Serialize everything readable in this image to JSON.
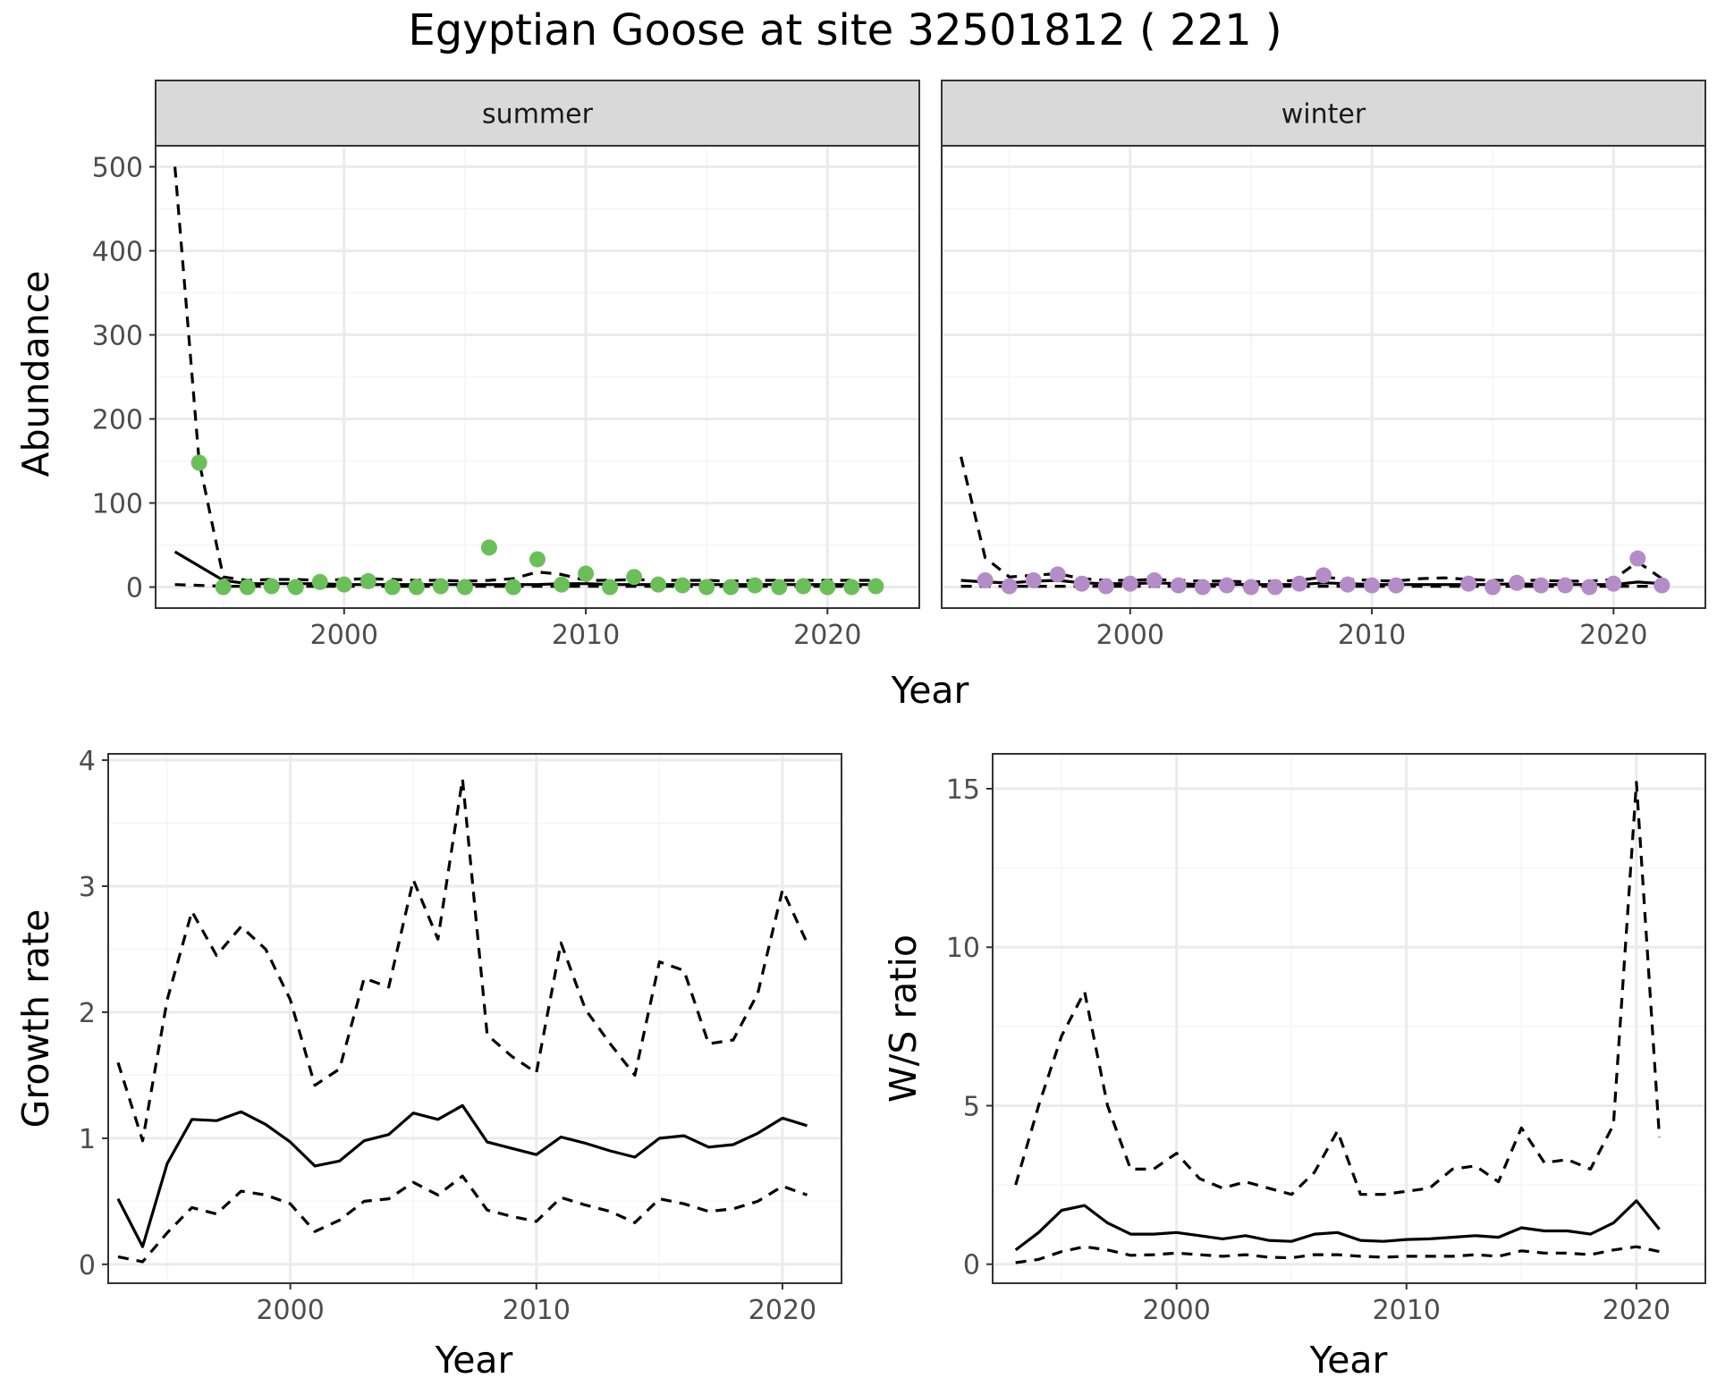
{
  "title": "Egyptian Goose at site 32501812 ( 221 )",
  "colors": {
    "summer_points": "#6BBF59",
    "winter_points": "#B48CC8",
    "line": "#000000",
    "strip_fill": "#D9D9D9",
    "grid_major": "#EBEBEB",
    "grid_minor": "#F5F5F5"
  },
  "chart_data": [
    {
      "id": "summer",
      "type": "line",
      "panel_title": "summer",
      "xlabel": "Year",
      "ylabel": "Abundance",
      "xlim": [
        1992.2,
        2023.8
      ],
      "ylim": [
        -25,
        525
      ],
      "x_ticks": [
        2000,
        2010,
        2020
      ],
      "x_tick_labels": [
        "2000",
        "2010",
        "2020"
      ],
      "y_ticks": [
        0,
        100,
        200,
        300,
        400,
        500
      ],
      "y_tick_labels": [
        "0",
        "100",
        "200",
        "300",
        "400",
        "500"
      ],
      "grid": true,
      "series": [
        {
          "name": "observed",
          "style": "points",
          "x": [
            1994,
            1995,
            1996,
            1997,
            1998,
            1999,
            2000,
            2001,
            2002,
            2003,
            2004,
            2005,
            2006,
            2007,
            2008,
            2009,
            2010,
            2011,
            2012,
            2013,
            2014,
            2015,
            2016,
            2017,
            2018,
            2019,
            2020,
            2021,
            2022
          ],
          "values": [
            148,
            0,
            0,
            1,
            0,
            6,
            3,
            7,
            0,
            0,
            1,
            0,
            47,
            0,
            33,
            3,
            16,
            0,
            12,
            3,
            2,
            0,
            0,
            2,
            0,
            1,
            0,
            0,
            1
          ]
        },
        {
          "name": "estimate",
          "style": "solid",
          "x": [
            1993,
            1994,
            1995,
            1996,
            1997,
            1998,
            1999,
            2000,
            2001,
            2002,
            2003,
            2004,
            2005,
            2006,
            2007,
            2008,
            2009,
            2010,
            2011,
            2012,
            2013,
            2014,
            2015,
            2016,
            2017,
            2018,
            2019,
            2020,
            2021,
            2022
          ],
          "values": [
            42,
            25,
            8,
            4,
            4,
            4,
            4,
            3,
            3,
            3,
            3,
            3,
            3,
            3,
            3,
            3,
            4,
            4,
            3,
            3,
            3,
            3,
            3,
            3,
            3,
            3,
            3,
            3,
            3,
            3
          ]
        },
        {
          "name": "upper",
          "style": "dashed",
          "x": [
            1993,
            1994,
            1995,
            1996,
            1997,
            1998,
            1999,
            2000,
            2001,
            2002,
            2003,
            2004,
            2005,
            2006,
            2007,
            2008,
            2009,
            2010,
            2011,
            2012,
            2013,
            2014,
            2015,
            2016,
            2017,
            2018,
            2019,
            2020,
            2021,
            2022
          ],
          "values": [
            500,
            150,
            12,
            8,
            9,
            9,
            8,
            9,
            10,
            9,
            8,
            8,
            7,
            8,
            10,
            18,
            15,
            8,
            8,
            9,
            8,
            8,
            8,
            7,
            8,
            8,
            8,
            8,
            8,
            8
          ]
        },
        {
          "name": "lower",
          "style": "dashed",
          "x": [
            1993,
            1994,
            1995,
            1996,
            1997,
            1998,
            1999,
            2000,
            2001,
            2002,
            2003,
            2004,
            2005,
            2006,
            2007,
            2008,
            2009,
            2010,
            2011,
            2012,
            2013,
            2014,
            2015,
            2016,
            2017,
            2018,
            2019,
            2020,
            2021,
            2022
          ],
          "values": [
            3,
            2,
            1,
            1,
            1,
            1,
            1,
            1,
            1,
            1,
            1,
            1,
            1,
            1,
            1,
            1,
            1,
            1,
            1,
            1,
            1,
            1,
            1,
            1,
            1,
            1,
            1,
            1,
            1,
            1
          ]
        }
      ]
    },
    {
      "id": "winter",
      "type": "line",
      "panel_title": "winter",
      "xlabel": "Year",
      "ylabel": "Abundance",
      "xlim": [
        1992.2,
        2023.8
      ],
      "ylim": [
        -25,
        525
      ],
      "x_ticks": [
        2000,
        2010,
        2020
      ],
      "x_tick_labels": [
        "2000",
        "2010",
        "2020"
      ],
      "y_ticks": [
        0,
        100,
        200,
        300,
        400,
        500
      ],
      "y_tick_labels": [],
      "grid": true,
      "series": [
        {
          "name": "observed",
          "style": "points",
          "x": [
            1994,
            1995,
            1996,
            1997,
            1998,
            1999,
            2000,
            2001,
            2002,
            2003,
            2004,
            2005,
            2006,
            2007,
            2008,
            2009,
            2010,
            2011,
            2014,
            2015,
            2016,
            2017,
            2018,
            2019,
            2020,
            2021,
            2022
          ],
          "values": [
            8,
            1,
            8,
            15,
            4,
            1,
            4,
            8,
            2,
            0,
            2,
            0,
            0,
            4,
            14,
            3,
            2,
            2,
            4,
            0,
            5,
            2,
            2,
            0,
            4,
            34,
            2
          ]
        },
        {
          "name": "estimate",
          "style": "solid",
          "x": [
            1993,
            1994,
            1995,
            1996,
            1997,
            1998,
            1999,
            2000,
            2001,
            2002,
            2003,
            2004,
            2005,
            2006,
            2007,
            2008,
            2009,
            2010,
            2011,
            2012,
            2013,
            2014,
            2015,
            2016,
            2017,
            2018,
            2019,
            2020,
            2021,
            2022
          ],
          "values": [
            8,
            6,
            5,
            7,
            8,
            5,
            4,
            4,
            5,
            4,
            3,
            3,
            3,
            3,
            3,
            5,
            4,
            3,
            3,
            3,
            3,
            3,
            3,
            4,
            3,
            3,
            3,
            3,
            6,
            4
          ]
        },
        {
          "name": "upper",
          "style": "dashed",
          "x": [
            1993,
            1994,
            1995,
            1996,
            1997,
            1998,
            1999,
            2000,
            2001,
            2002,
            2003,
            2004,
            2005,
            2006,
            2007,
            2008,
            2009,
            2010,
            2011,
            2012,
            2013,
            2014,
            2015,
            2016,
            2017,
            2018,
            2019,
            2020,
            2021,
            2022
          ],
          "values": [
            155,
            35,
            12,
            14,
            16,
            10,
            8,
            8,
            9,
            8,
            7,
            7,
            6,
            7,
            8,
            12,
            9,
            8,
            7,
            10,
            11,
            9,
            8,
            8,
            8,
            7,
            7,
            9,
            30,
            10
          ]
        },
        {
          "name": "lower",
          "style": "dashed",
          "x": [
            1993,
            1994,
            1995,
            1996,
            1997,
            1998,
            1999,
            2000,
            2001,
            2002,
            2003,
            2004,
            2005,
            2006,
            2007,
            2008,
            2009,
            2010,
            2011,
            2012,
            2013,
            2014,
            2015,
            2016,
            2017,
            2018,
            2019,
            2020,
            2021,
            2022
          ],
          "values": [
            1,
            1,
            1,
            1,
            1,
            1,
            1,
            1,
            1,
            1,
            1,
            1,
            1,
            1,
            1,
            1,
            1,
            1,
            1,
            1,
            1,
            1,
            1,
            1,
            1,
            1,
            1,
            1,
            1,
            1
          ]
        }
      ]
    },
    {
      "id": "growth",
      "type": "line",
      "xlabel": "Year",
      "ylabel": "Growth rate",
      "xlim": [
        1992.6,
        2022.4
      ],
      "ylim": [
        -0.15,
        4.05
      ],
      "x_ticks": [
        2000,
        2010,
        2020
      ],
      "x_tick_labels": [
        "2000",
        "2010",
        "2020"
      ],
      "y_ticks": [
        0,
        1,
        2,
        3,
        4
      ],
      "y_tick_labels": [
        "0",
        "1",
        "2",
        "3",
        "4"
      ],
      "grid": true,
      "series": [
        {
          "name": "estimate",
          "style": "solid",
          "x": [
            1993,
            1994,
            1995,
            1996,
            1997,
            1998,
            1999,
            2000,
            2001,
            2002,
            2003,
            2004,
            2005,
            2006,
            2007,
            2008,
            2009,
            2010,
            2011,
            2012,
            2013,
            2014,
            2015,
            2016,
            2017,
            2018,
            2019,
            2020,
            2021
          ],
          "values": [
            0.52,
            0.14,
            0.8,
            1.15,
            1.14,
            1.21,
            1.11,
            0.97,
            0.78,
            0.82,
            0.98,
            1.03,
            1.2,
            1.15,
            1.26,
            0.97,
            0.92,
            0.87,
            1.01,
            0.96,
            0.9,
            0.85,
            1.0,
            1.02,
            0.93,
            0.95,
            1.04,
            1.16,
            1.1
          ]
        },
        {
          "name": "upper",
          "style": "dashed",
          "x": [
            1993,
            1994,
            1995,
            1996,
            1997,
            1998,
            1999,
            2000,
            2001,
            2002,
            2003,
            2004,
            2005,
            2006,
            2007,
            2008,
            2009,
            2010,
            2011,
            2012,
            2013,
            2014,
            2015,
            2016,
            2017,
            2018,
            2019,
            2020,
            2021
          ],
          "values": [
            1.6,
            0.98,
            2.1,
            2.8,
            2.45,
            2.68,
            2.5,
            2.1,
            1.42,
            1.55,
            2.27,
            2.2,
            3.05,
            2.58,
            3.85,
            1.82,
            1.65,
            1.52,
            2.55,
            2.02,
            1.75,
            1.5,
            2.4,
            2.33,
            1.75,
            1.78,
            2.15,
            2.97,
            2.55
          ]
        },
        {
          "name": "lower",
          "style": "dashed",
          "x": [
            1993,
            1994,
            1995,
            1996,
            1997,
            1998,
            1999,
            2000,
            2001,
            2002,
            2003,
            2004,
            2005,
            2006,
            2007,
            2008,
            2009,
            2010,
            2011,
            2012,
            2013,
            2014,
            2015,
            2016,
            2017,
            2018,
            2019,
            2020,
            2021
          ],
          "values": [
            0.06,
            0.02,
            0.25,
            0.45,
            0.4,
            0.58,
            0.55,
            0.48,
            0.26,
            0.35,
            0.5,
            0.52,
            0.65,
            0.55,
            0.7,
            0.43,
            0.38,
            0.34,
            0.53,
            0.47,
            0.42,
            0.33,
            0.52,
            0.48,
            0.42,
            0.44,
            0.5,
            0.62,
            0.55
          ]
        }
      ]
    },
    {
      "id": "ratio",
      "type": "line",
      "xlabel": "Year",
      "ylabel": "W/S ratio",
      "xlim": [
        1992.0,
        2023.0
      ],
      "ylim": [
        -0.6,
        16.1
      ],
      "x_ticks": [
        2000,
        2010,
        2020
      ],
      "x_tick_labels": [
        "2000",
        "2010",
        "2020"
      ],
      "y_ticks": [
        0,
        5,
        10,
        15
      ],
      "y_tick_labels": [
        "0",
        "5",
        "10",
        "15"
      ],
      "grid": true,
      "series": [
        {
          "name": "estimate",
          "style": "solid",
          "x": [
            1993,
            1994,
            1995,
            1996,
            1997,
            1998,
            1999,
            2000,
            2001,
            2002,
            2003,
            2004,
            2005,
            2006,
            2007,
            2008,
            2009,
            2010,
            2011,
            2012,
            2013,
            2014,
            2015,
            2016,
            2017,
            2018,
            2019,
            2020,
            2021
          ],
          "values": [
            0.45,
            1.0,
            1.7,
            1.85,
            1.3,
            0.95,
            0.95,
            1.0,
            0.9,
            0.8,
            0.9,
            0.75,
            0.72,
            0.95,
            1.0,
            0.75,
            0.72,
            0.78,
            0.8,
            0.85,
            0.9,
            0.85,
            1.15,
            1.05,
            1.05,
            0.95,
            1.3,
            2.0,
            1.1
          ]
        },
        {
          "name": "upper",
          "style": "dashed",
          "x": [
            1993,
            1994,
            1995,
            1996,
            1997,
            1998,
            1999,
            2000,
            2001,
            2002,
            2003,
            2004,
            2005,
            2006,
            2007,
            2008,
            2009,
            2010,
            2011,
            2012,
            2013,
            2014,
            2015,
            2016,
            2017,
            2018,
            2019,
            2020,
            2021
          ],
          "values": [
            2.5,
            5.0,
            7.2,
            8.6,
            5.0,
            3.0,
            3.0,
            3.5,
            2.7,
            2.4,
            2.6,
            2.4,
            2.2,
            2.9,
            4.2,
            2.2,
            2.2,
            2.3,
            2.4,
            3.0,
            3.1,
            2.6,
            4.3,
            3.2,
            3.3,
            3.0,
            4.4,
            15.2,
            4.0
          ]
        },
        {
          "name": "lower",
          "style": "dashed",
          "x": [
            1993,
            1994,
            1995,
            1996,
            1997,
            1998,
            1999,
            2000,
            2001,
            2002,
            2003,
            2004,
            2005,
            2006,
            2007,
            2008,
            2009,
            2010,
            2011,
            2012,
            2013,
            2014,
            2015,
            2016,
            2017,
            2018,
            2019,
            2020,
            2021
          ],
          "values": [
            0.05,
            0.15,
            0.4,
            0.55,
            0.45,
            0.28,
            0.3,
            0.35,
            0.3,
            0.25,
            0.3,
            0.22,
            0.2,
            0.3,
            0.3,
            0.25,
            0.22,
            0.25,
            0.25,
            0.25,
            0.3,
            0.25,
            0.42,
            0.35,
            0.35,
            0.3,
            0.45,
            0.55,
            0.4
          ]
        }
      ]
    }
  ]
}
